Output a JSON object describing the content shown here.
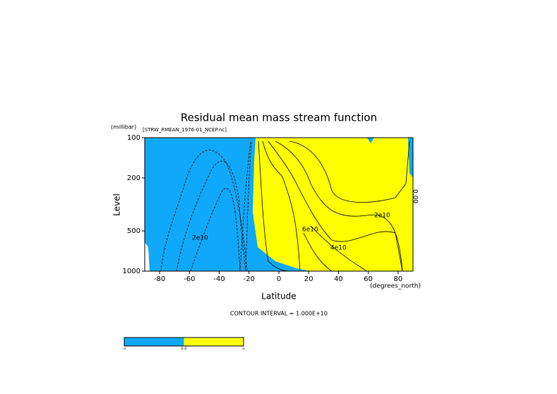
{
  "chart_data": {
    "type": "contour",
    "title": "Residual mean mass stream function",
    "subtitle": "[STRW_RMEAN_1976-01_NCEP.nc]",
    "x_label": "Latitude",
    "x_units": "(degrees_north)",
    "y_label": "Level",
    "y_units": "(millibar)",
    "xlim": [
      -90,
      90
    ],
    "xticks": [
      -80,
      -60,
      -40,
      -20,
      0,
      20,
      40,
      60,
      80
    ],
    "ylim": [
      1000,
      100
    ],
    "yticks": [
      100,
      200,
      500,
      1000
    ],
    "log_y": true,
    "footnote": "CONTOUR INTERVAL = 1.000E+10",
    "contour_labels": [
      "2e10",
      "4e10",
      "6e10",
      "2e10",
      "0.00"
    ],
    "colorbar": {
      "colors": [
        "#10a8f8",
        "#ffff00"
      ],
      "labels": [
        "-∞",
        "0.0",
        "∞"
      ]
    }
  }
}
